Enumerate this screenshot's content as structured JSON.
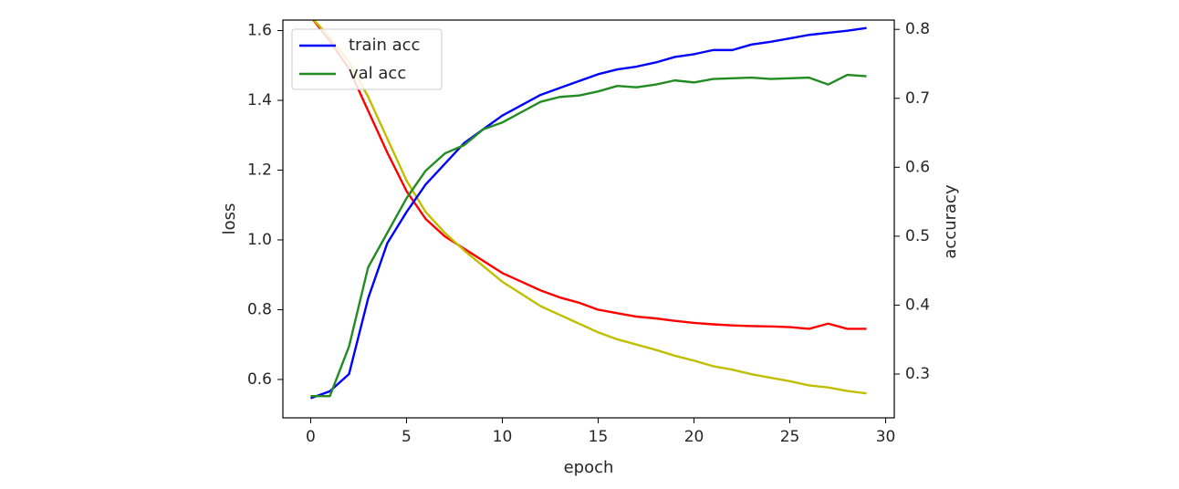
{
  "chart_data": {
    "type": "line",
    "title": "",
    "xlabel": "epoch",
    "ylabel": "loss",
    "y2label": "accuracy",
    "xlim": [
      -1.45,
      30.45
    ],
    "ylim": [
      0.49,
      1.63
    ],
    "y2lim": [
      0.2365,
      0.8135
    ],
    "xticks": [
      0,
      5,
      10,
      15,
      20,
      25,
      30
    ],
    "yticks": [
      0.6,
      0.8,
      1.0,
      1.2,
      1.4,
      1.6
    ],
    "y2ticks": [
      0.3,
      0.4,
      0.5,
      0.6,
      0.7,
      0.8
    ],
    "xtick_labels": [
      "0",
      "5",
      "10",
      "15",
      "20",
      "25",
      "30"
    ],
    "ytick_labels": [
      "0.6",
      "0.8",
      "1.0",
      "1.2",
      "1.4",
      "1.6"
    ],
    "y2tick_labels": [
      "0.3",
      "0.4",
      "0.5",
      "0.6",
      "0.7",
      "0.8"
    ],
    "grid": false,
    "legend_position": "upper-left",
    "x": [
      0,
      1,
      2,
      3,
      4,
      5,
      6,
      7,
      8,
      9,
      10,
      11,
      12,
      13,
      14,
      15,
      16,
      17,
      18,
      19,
      20,
      21,
      22,
      23,
      24,
      25,
      26,
      27,
      28,
      29
    ],
    "series": [
      {
        "axis": "left",
        "color": "#ff0000",
        "values": [
          1.64,
          1.57,
          1.49,
          1.37,
          1.25,
          1.14,
          1.06,
          1.01,
          0.975,
          0.94,
          0.905,
          0.88,
          0.855,
          0.835,
          0.82,
          0.8,
          0.79,
          0.78,
          0.775,
          0.768,
          0.762,
          0.758,
          0.755,
          0.753,
          0.752,
          0.75,
          0.745,
          0.76,
          0.745,
          0.745
        ]
      },
      {
        "axis": "left",
        "color": "#bfbf00",
        "values": [
          1.64,
          1.58,
          1.51,
          1.41,
          1.29,
          1.17,
          1.08,
          1.02,
          0.97,
          0.925,
          0.88,
          0.845,
          0.81,
          0.785,
          0.76,
          0.735,
          0.715,
          0.7,
          0.685,
          0.668,
          0.654,
          0.638,
          0.628,
          0.615,
          0.605,
          0.595,
          0.583,
          0.577,
          0.567,
          0.56
        ]
      },
      {
        "axis": "right",
        "name": "train acc",
        "color": "#0000ff",
        "values": [
          0.265,
          0.275,
          0.3,
          0.41,
          0.49,
          0.535,
          0.575,
          0.605,
          0.635,
          0.655,
          0.675,
          0.69,
          0.705,
          0.715,
          0.725,
          0.735,
          0.742,
          0.746,
          0.752,
          0.76,
          0.764,
          0.77,
          0.77,
          0.778,
          0.782,
          0.787,
          0.792,
          0.795,
          0.798,
          0.802
        ]
      },
      {
        "axis": "right",
        "name": "val acc",
        "color": "#228b22",
        "values": [
          0.268,
          0.268,
          0.34,
          0.455,
          0.505,
          0.555,
          0.595,
          0.62,
          0.632,
          0.655,
          0.665,
          0.68,
          0.695,
          0.702,
          0.704,
          0.71,
          0.718,
          0.716,
          0.72,
          0.726,
          0.723,
          0.728,
          0.729,
          0.73,
          0.728,
          0.729,
          0.73,
          0.72,
          0.734,
          0.732
        ]
      }
    ]
  }
}
